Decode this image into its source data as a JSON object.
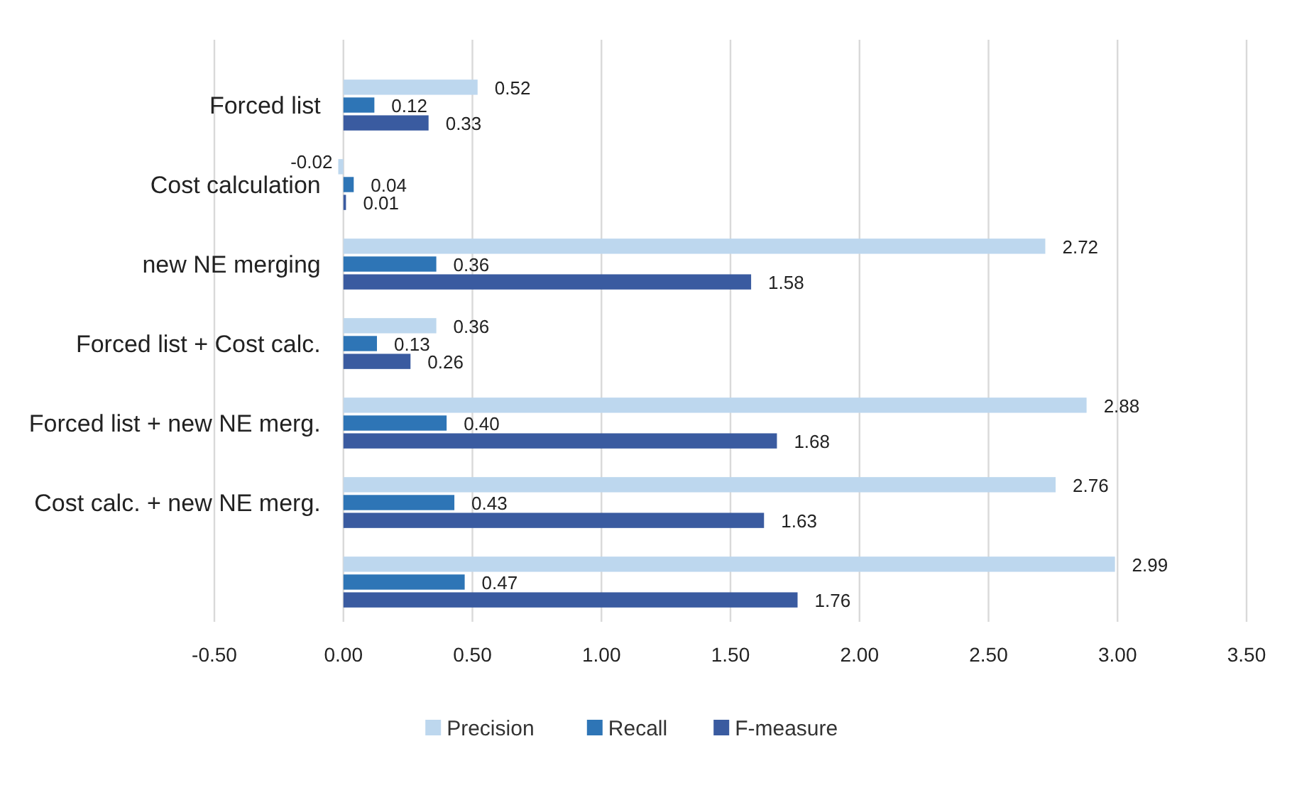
{
  "chart_data": {
    "type": "bar",
    "orientation": "horizontal",
    "categories": [
      "Forced list",
      "Cost calculation",
      "new NE merging",
      "Forced list + Cost calc.",
      "Forced list + new NE merg.",
      "Cost calc. + new NE merg.",
      null
    ],
    "series": [
      {
        "name": "Precision",
        "color": "#bdd7ee",
        "values": [
          0.52,
          -0.02,
          2.72,
          0.36,
          2.88,
          2.76,
          2.99
        ],
        "value_labels": [
          "0.52",
          "-0.02",
          "2.72",
          "0.36",
          "2.88",
          "2.76",
          "2.99"
        ]
      },
      {
        "name": "Recall",
        "color": "#2e75b6",
        "values": [
          0.12,
          0.04,
          0.36,
          0.13,
          0.4,
          0.43,
          0.47
        ],
        "value_labels": [
          "0.12",
          "0.04",
          "0.36",
          "0.13",
          "0.40",
          "0.43",
          "0.47"
        ]
      },
      {
        "name": "F-measure",
        "color": "#3a5ba0",
        "values": [
          0.33,
          0.01,
          1.58,
          0.26,
          1.68,
          1.63,
          1.76
        ],
        "value_labels": [
          "0.33",
          "0.01",
          "1.58",
          "0.26",
          "1.68",
          "1.63",
          "1.76"
        ]
      }
    ],
    "xlim": [
      -0.5,
      3.5
    ],
    "xticks": [
      {
        "value": -0.5,
        "label": "-0.50"
      },
      {
        "value": 0,
        "label": "0.00"
      },
      {
        "value": 0.5,
        "label": "0.50"
      },
      {
        "value": 1,
        "label": "1.00"
      },
      {
        "value": 1.5,
        "label": "1.50"
      },
      {
        "value": 2,
        "label": "2.00"
      },
      {
        "value": 2.5,
        "label": "2.50"
      },
      {
        "value": 3,
        "label": "3.00"
      },
      {
        "value": 3.5,
        "label": "3.50"
      }
    ],
    "grid": "x",
    "legend": "bottom"
  }
}
